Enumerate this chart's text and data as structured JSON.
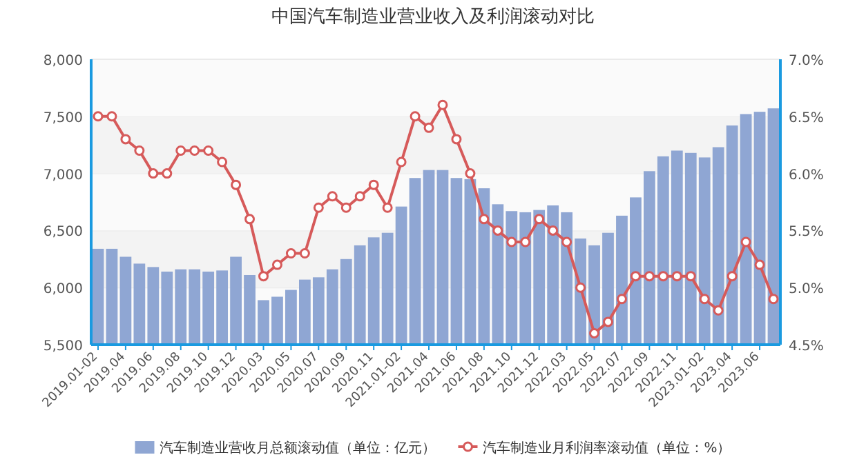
{
  "chart_data": {
    "type": "bar",
    "title": "中国汽车制造业营业收入及利润滚动对比",
    "categories": [
      "2019.01-02",
      null,
      "2019.04",
      null,
      "2019.06",
      null,
      "2019.08",
      null,
      "2019.10",
      null,
      "2019.12",
      null,
      "2020.03",
      null,
      "2020.05",
      null,
      "2020.07",
      null,
      "2020.09",
      null,
      "2020.11",
      null,
      "2021.01-02",
      null,
      "2021.04",
      null,
      "2021.06",
      null,
      "2021.08",
      null,
      "2021.10",
      null,
      "2021.12",
      null,
      "2022.03",
      null,
      "2022.05",
      null,
      "2022.07",
      null,
      "2022.09",
      null,
      "2022.11",
      null,
      "2023.01-02",
      null,
      "2023.04",
      null,
      "2023.06",
      null
    ],
    "series": [
      {
        "name": "汽车制造业营收月总额滚动值（单位：亿元）",
        "color": "#8fa6d3",
        "values": [
          6340,
          6340,
          6270,
          6210,
          6180,
          6140,
          6160,
          6160,
          6140,
          6150,
          6270,
          6110,
          5890,
          5920,
          5980,
          6070,
          6090,
          6160,
          6250,
          6370,
          6440,
          6480,
          6710,
          6960,
          7030,
          7030,
          6960,
          6950,
          6870,
          6730,
          6670,
          6660,
          6680,
          6720,
          6660,
          6430,
          6370,
          6480,
          6630,
          6790,
          7020,
          7150,
          7200,
          7180,
          7140,
          7230,
          7420,
          7520,
          7540,
          7570
        ]
      },
      {
        "name": "汽车制造业月利润率滚动值（单位：%）",
        "type": "line",
        "axis": "y2",
        "color": "#d65a5a",
        "marker": "circle",
        "values": [
          6.5,
          6.5,
          6.3,
          6.2,
          6.0,
          6.0,
          6.2,
          6.2,
          6.2,
          6.1,
          5.9,
          5.6,
          5.1,
          5.2,
          5.3,
          5.3,
          5.7,
          5.8,
          5.7,
          5.8,
          5.9,
          5.7,
          6.1,
          6.5,
          6.4,
          6.6,
          6.3,
          6.0,
          5.6,
          5.5,
          5.4,
          5.4,
          5.6,
          5.5,
          5.4,
          5.0,
          4.6,
          4.7,
          4.9,
          5.1,
          5.1,
          5.1,
          5.1,
          5.1,
          4.9,
          4.8,
          5.1,
          5.4,
          5.2,
          4.9
        ]
      }
    ],
    "ylim": [
      5500,
      8000
    ],
    "yticks": [
      {
        "value": 5500,
        "label": "5,500"
      },
      {
        "value": 6000,
        "label": "6,000"
      },
      {
        "value": 6500,
        "label": "6,500"
      },
      {
        "value": 7000,
        "label": "7,000"
      },
      {
        "value": 7500,
        "label": "7,500"
      },
      {
        "value": 8000,
        "label": "8,000"
      }
    ],
    "y2lim": [
      4.5,
      7.0
    ],
    "y2ticks": [
      {
        "value": 4.5,
        "label": "4.5%"
      },
      {
        "value": 5.0,
        "label": "5.0%"
      },
      {
        "value": 5.5,
        "label": "5.5%"
      },
      {
        "value": 6.0,
        "label": "6.0%"
      },
      {
        "value": 6.5,
        "label": "6.5%"
      },
      {
        "value": 7.0,
        "label": "7.0%"
      }
    ],
    "grid": "y",
    "legend": "bottom"
  }
}
